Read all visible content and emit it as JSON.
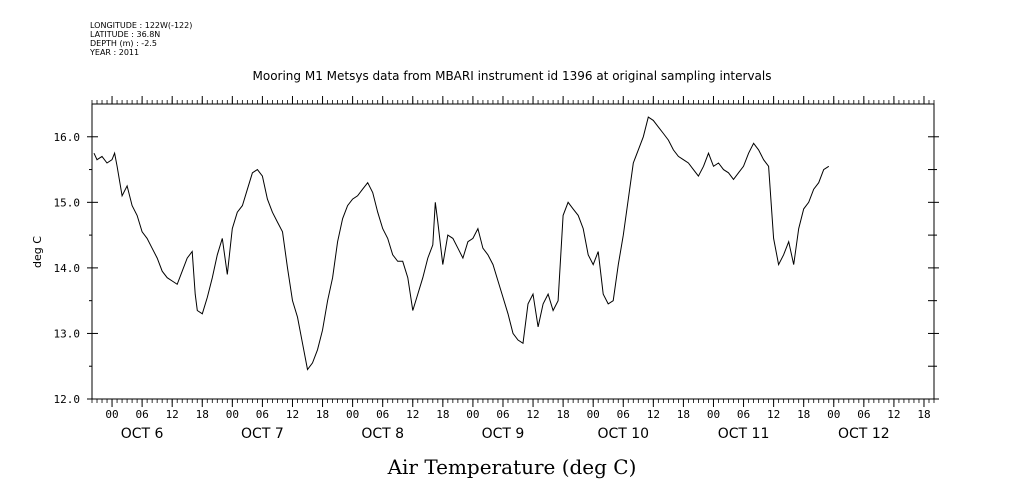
{
  "meta": {
    "longitude": "LONGITUDE : 122W(-122)",
    "latitude": "LATITUDE : 36.8N",
    "depth": "DEPTH (m) : -2.5",
    "year": "YEAR : 2011"
  },
  "chart_data": {
    "type": "line",
    "title": "Mooring M1 Metsys data from MBARI instrument id 1396 at original sampling intervals",
    "xlabel": "Air Temperature (deg C)",
    "ylabel": "deg C",
    "ylim": [
      12.0,
      16.5
    ],
    "yticks": [
      12.0,
      13.0,
      14.0,
      15.0,
      16.0
    ],
    "xlim_hours": [
      -4,
      164
    ],
    "hour_ticks": [
      "00",
      "06",
      "12",
      "18",
      "00",
      "06",
      "12",
      "18",
      "00",
      "06",
      "12",
      "18",
      "00",
      "06",
      "12",
      "18",
      "00",
      "06",
      "12",
      "18",
      "00",
      "06",
      "12",
      "18",
      "00",
      "06",
      "12",
      "18"
    ],
    "hour_tick_positions": [
      0,
      6,
      12,
      18,
      24,
      30,
      36,
      42,
      48,
      54,
      60,
      66,
      72,
      78,
      84,
      90,
      96,
      102,
      108,
      114,
      120,
      126,
      132,
      138,
      144,
      150,
      156,
      162
    ],
    "day_labels": [
      "OCT  6",
      "OCT  7",
      "OCT  8",
      "OCT  9",
      "OCT 10",
      "OCT 11",
      "OCT 12"
    ],
    "day_label_positions": [
      6,
      30,
      54,
      78,
      102,
      126,
      150
    ],
    "series": [
      {
        "points": [
          [
            -3.6,
            15.75
          ],
          [
            -3,
            15.65
          ],
          [
            -2,
            15.7
          ],
          [
            -1,
            15.6
          ],
          [
            0,
            15.65
          ],
          [
            0.5,
            15.75
          ],
          [
            1,
            15.55
          ],
          [
            2,
            15.1
          ],
          [
            3,
            15.25
          ],
          [
            4,
            14.95
          ],
          [
            5,
            14.8
          ],
          [
            6,
            14.55
          ],
          [
            7,
            14.45
          ],
          [
            8,
            14.3
          ],
          [
            9,
            14.15
          ],
          [
            10,
            13.95
          ],
          [
            11,
            13.85
          ],
          [
            12,
            13.8
          ],
          [
            13,
            13.75
          ],
          [
            14,
            13.95
          ],
          [
            15,
            14.15
          ],
          [
            16,
            14.25
          ],
          [
            16.6,
            13.6
          ],
          [
            17,
            13.35
          ],
          [
            18,
            13.3
          ],
          [
            19,
            13.55
          ],
          [
            20,
            13.85
          ],
          [
            21,
            14.2
          ],
          [
            22,
            14.45
          ],
          [
            23,
            13.9
          ],
          [
            24,
            14.6
          ],
          [
            25,
            14.85
          ],
          [
            26,
            14.95
          ],
          [
            27,
            15.2
          ],
          [
            28,
            15.45
          ],
          [
            29,
            15.5
          ],
          [
            30,
            15.4
          ],
          [
            31,
            15.05
          ],
          [
            32,
            14.85
          ],
          [
            33,
            14.7
          ],
          [
            34,
            14.55
          ],
          [
            35,
            14.0
          ],
          [
            36,
            13.5
          ],
          [
            37,
            13.25
          ],
          [
            38,
            12.85
          ],
          [
            39,
            12.45
          ],
          [
            40,
            12.55
          ],
          [
            41,
            12.75
          ],
          [
            42,
            13.05
          ],
          [
            43,
            13.5
          ],
          [
            44,
            13.85
          ],
          [
            45,
            14.4
          ],
          [
            46,
            14.75
          ],
          [
            47,
            14.95
          ],
          [
            48,
            15.05
          ],
          [
            49,
            15.1
          ],
          [
            50,
            15.2
          ],
          [
            51,
            15.3
          ],
          [
            52,
            15.15
          ],
          [
            53,
            14.85
          ],
          [
            54,
            14.6
          ],
          [
            55,
            14.45
          ],
          [
            56,
            14.2
          ],
          [
            57,
            14.1
          ],
          [
            58,
            14.1
          ],
          [
            59,
            13.85
          ],
          [
            60,
            13.35
          ],
          [
            61,
            13.6
          ],
          [
            62,
            13.85
          ],
          [
            63,
            14.15
          ],
          [
            64,
            14.35
          ],
          [
            64.5,
            15.0
          ],
          [
            65,
            14.7
          ],
          [
            66,
            14.05
          ],
          [
            67,
            14.5
          ],
          [
            68,
            14.45
          ],
          [
            69,
            14.3
          ],
          [
            70,
            14.15
          ],
          [
            71,
            14.4
          ],
          [
            72,
            14.45
          ],
          [
            73,
            14.6
          ],
          [
            74,
            14.3
          ],
          [
            75,
            14.2
          ],
          [
            76,
            14.05
          ],
          [
            77,
            13.8
          ],
          [
            78,
            13.55
          ],
          [
            79,
            13.3
          ],
          [
            80,
            13.0
          ],
          [
            81,
            12.9
          ],
          [
            82,
            12.85
          ],
          [
            83,
            13.45
          ],
          [
            84,
            13.6
          ],
          [
            85,
            13.1
          ],
          [
            86,
            13.45
          ],
          [
            87,
            13.6
          ],
          [
            88,
            13.35
          ],
          [
            89,
            13.5
          ],
          [
            90,
            14.8
          ],
          [
            91,
            15.0
          ],
          [
            92,
            14.9
          ],
          [
            93,
            14.8
          ],
          [
            94,
            14.6
          ],
          [
            95,
            14.2
          ],
          [
            96,
            14.05
          ],
          [
            97,
            14.25
          ],
          [
            98,
            13.6
          ],
          [
            99,
            13.45
          ],
          [
            100,
            13.5
          ],
          [
            101,
            14.05
          ],
          [
            102,
            14.5
          ],
          [
            103,
            15.05
          ],
          [
            104,
            15.6
          ],
          [
            105,
            15.8
          ],
          [
            106,
            16.0
          ],
          [
            107,
            16.3
          ],
          [
            108,
            16.25
          ],
          [
            109,
            16.15
          ],
          [
            110,
            16.05
          ],
          [
            111,
            15.95
          ],
          [
            112,
            15.8
          ],
          [
            113,
            15.7
          ],
          [
            114,
            15.65
          ],
          [
            115,
            15.6
          ],
          [
            116,
            15.5
          ],
          [
            117,
            15.4
          ],
          [
            118,
            15.55
          ],
          [
            119,
            15.75
          ],
          [
            120,
            15.55
          ],
          [
            121,
            15.6
          ],
          [
            122,
            15.5
          ],
          [
            123,
            15.45
          ],
          [
            124,
            15.35
          ],
          [
            125,
            15.45
          ],
          [
            126,
            15.55
          ],
          [
            127,
            15.75
          ],
          [
            128,
            15.9
          ],
          [
            129,
            15.8
          ],
          [
            130,
            15.65
          ],
          [
            131,
            15.55
          ],
          [
            132,
            14.45
          ],
          [
            133,
            14.05
          ],
          [
            134,
            14.2
          ],
          [
            135,
            14.4
          ],
          [
            136,
            14.05
          ],
          [
            137,
            14.6
          ],
          [
            138,
            14.9
          ],
          [
            139,
            15.0
          ],
          [
            140,
            15.2
          ],
          [
            141,
            15.3
          ],
          [
            142,
            15.5
          ],
          [
            143,
            15.55
          ]
        ]
      }
    ]
  }
}
